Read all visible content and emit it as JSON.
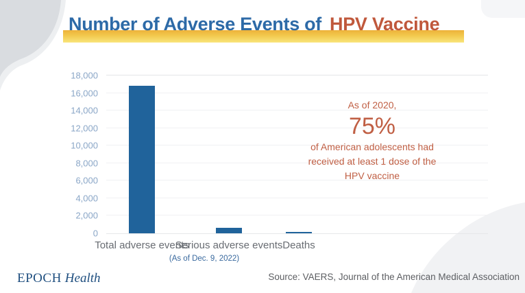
{
  "page": {
    "title_part1": "Number of Adverse Events of",
    "title_part2": "HPV Vaccine"
  },
  "chart_data": {
    "type": "bar",
    "title": "Number of Adverse Events of HPV Vaccine",
    "categories": [
      "Total adverse events",
      "Serious adverse events",
      "Deaths"
    ],
    "values": [
      16800,
      650,
      170
    ],
    "ylim": [
      0,
      18000
    ],
    "ytick_step": 2000,
    "grid": true,
    "legend_position": "none",
    "bar_color": "#20639b",
    "footnote": "(As of Dec. 9, 2022)"
  },
  "annotation": {
    "intro": "As of 2020,",
    "stat": "75%",
    "line1": "of American adolescents had",
    "line2": "received at least 1 dose of the",
    "line3": "HPV vaccine"
  },
  "footer": {
    "logo_epoch": "EPOCH",
    "logo_health": "Health",
    "source": "Source: VAERS,  Journal of the American Medical Association"
  },
  "colors": {
    "title_blue": "#2d6aa7",
    "title_orange": "#c0583c",
    "highlight_gold": "#edb23a",
    "highlight_yellow": "#f9e57c",
    "bar_blue": "#20639b",
    "annotation_red": "#c05f44",
    "axis_label_blue": "#8aa6c7",
    "category_label_gray": "#686c72",
    "footnote_blue": "#39699e",
    "source_gray": "#5c5e62",
    "logo_navy": "#1e4e7f"
  }
}
